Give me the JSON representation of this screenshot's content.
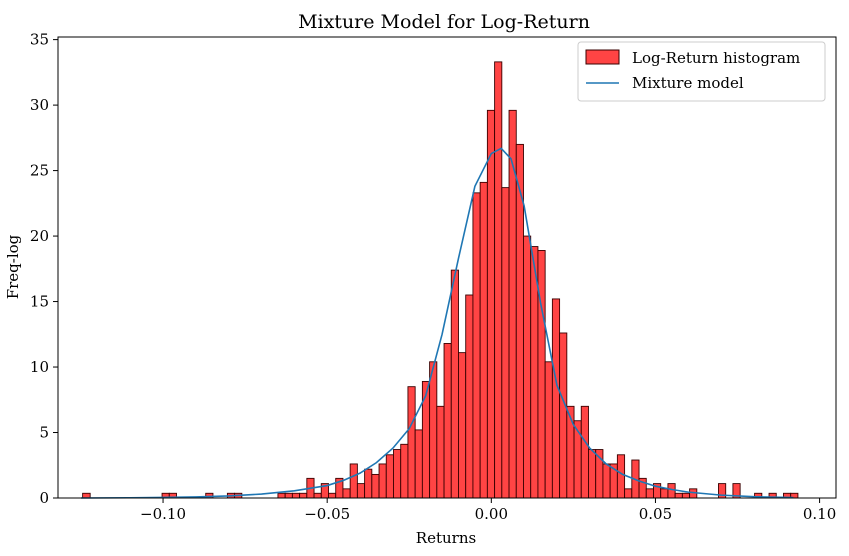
{
  "chart_data": {
    "type": "bar",
    "title": "Mixture Model for Log-Return",
    "xlabel": "Returns",
    "ylabel": "Freq-log",
    "xlim": [
      -0.132,
      0.105
    ],
    "ylim": [
      0,
      35.2
    ],
    "xticks": [
      -0.1,
      -0.05,
      0.0,
      0.05,
      0.1
    ],
    "xtick_labels": [
      "−0.10",
      "−0.05",
      "0.00",
      "0.05",
      "0.10"
    ],
    "yticks": [
      0,
      5,
      10,
      15,
      20,
      25,
      30,
      35
    ],
    "ytick_labels": [
      "0",
      "5",
      "10",
      "15",
      "20",
      "25",
      "30",
      "35"
    ],
    "grid": false,
    "legend": {
      "location": "top-right",
      "entries": [
        {
          "label": "Log-Return histogram",
          "kind": "patch"
        },
        {
          "label": "Mixture model",
          "kind": "line"
        }
      ]
    },
    "series": [
      {
        "name": "Log-Return histogram",
        "kind": "histogram",
        "color": "#ff4444",
        "edgecolor": "#3a0000",
        "bins": [
          {
            "x0": -0.1245,
            "x1": -0.1222,
            "h": 0.36
          },
          {
            "x0": -0.1003,
            "x1": -0.0981,
            "h": 0.36
          },
          {
            "x0": -0.0981,
            "x1": -0.0959,
            "h": 0.36
          },
          {
            "x0": -0.087,
            "x1": -0.0848,
            "h": 0.36
          },
          {
            "x0": -0.0804,
            "x1": -0.0782,
            "h": 0.36
          },
          {
            "x0": -0.0782,
            "x1": -0.076,
            "h": 0.36
          },
          {
            "x0": -0.065,
            "x1": -0.0628,
            "h": 0.36
          },
          {
            "x0": -0.0628,
            "x1": -0.0606,
            "h": 0.36
          },
          {
            "x0": -0.0606,
            "x1": -0.0584,
            "h": 0.36
          },
          {
            "x0": -0.0584,
            "x1": -0.0562,
            "h": 0.36
          },
          {
            "x0": -0.0562,
            "x1": -0.054,
            "h": 1.5
          },
          {
            "x0": -0.054,
            "x1": -0.0518,
            "h": 0.36
          },
          {
            "x0": -0.0518,
            "x1": -0.0496,
            "h": 1.1
          },
          {
            "x0": -0.0496,
            "x1": -0.0474,
            "h": 0.36
          },
          {
            "x0": -0.0474,
            "x1": -0.0452,
            "h": 1.5
          },
          {
            "x0": -0.0452,
            "x1": -0.043,
            "h": 0.7
          },
          {
            "x0": -0.043,
            "x1": -0.0408,
            "h": 2.6
          },
          {
            "x0": -0.0408,
            "x1": -0.0386,
            "h": 1.1
          },
          {
            "x0": -0.0386,
            "x1": -0.0364,
            "h": 2.2
          },
          {
            "x0": -0.0364,
            "x1": -0.0342,
            "h": 1.8
          },
          {
            "x0": -0.0342,
            "x1": -0.032,
            "h": 2.6
          },
          {
            "x0": -0.032,
            "x1": -0.0298,
            "h": 3.3
          },
          {
            "x0": -0.0298,
            "x1": -0.0276,
            "h": 3.7
          },
          {
            "x0": -0.0276,
            "x1": -0.0254,
            "h": 4.1
          },
          {
            "x0": -0.0254,
            "x1": -0.0232,
            "h": 8.5
          },
          {
            "x0": -0.0232,
            "x1": -0.021,
            "h": 5.2
          },
          {
            "x0": -0.021,
            "x1": -0.0188,
            "h": 8.9
          },
          {
            "x0": -0.0188,
            "x1": -0.0166,
            "h": 10.4
          },
          {
            "x0": -0.0166,
            "x1": -0.0144,
            "h": 7.0
          },
          {
            "x0": -0.0144,
            "x1": -0.0122,
            "h": 11.8
          },
          {
            "x0": -0.0122,
            "x1": -0.01,
            "h": 17.4
          },
          {
            "x0": -0.01,
            "x1": -0.0078,
            "h": 11.1
          },
          {
            "x0": -0.0078,
            "x1": -0.0056,
            "h": 15.5
          },
          {
            "x0": -0.0056,
            "x1": -0.0034,
            "h": 23.3
          },
          {
            "x0": -0.0034,
            "x1": -0.0012,
            "h": 24.1
          },
          {
            "x0": -0.0012,
            "x1": 0.001,
            "h": 29.6
          },
          {
            "x0": 0.001,
            "x1": 0.0032,
            "h": 33.3
          },
          {
            "x0": 0.0032,
            "x1": 0.0054,
            "h": 23.7
          },
          {
            "x0": 0.0054,
            "x1": 0.0076,
            "h": 29.6
          },
          {
            "x0": 0.0076,
            "x1": 0.0098,
            "h": 27.0
          },
          {
            "x0": 0.0098,
            "x1": 0.012,
            "h": 20.0
          },
          {
            "x0": 0.012,
            "x1": 0.0142,
            "h": 19.2
          },
          {
            "x0": 0.0142,
            "x1": 0.0164,
            "h": 18.9
          },
          {
            "x0": 0.0164,
            "x1": 0.0186,
            "h": 10.4
          },
          {
            "x0": 0.0186,
            "x1": 0.0208,
            "h": 15.2
          },
          {
            "x0": 0.0208,
            "x1": 0.023,
            "h": 12.6
          },
          {
            "x0": 0.023,
            "x1": 0.0252,
            "h": 7.0
          },
          {
            "x0": 0.0252,
            "x1": 0.0274,
            "h": 5.9
          },
          {
            "x0": 0.0274,
            "x1": 0.0296,
            "h": 7.0
          },
          {
            "x0": 0.0296,
            "x1": 0.0318,
            "h": 3.7
          },
          {
            "x0": 0.0318,
            "x1": 0.034,
            "h": 3.7
          },
          {
            "x0": 0.034,
            "x1": 0.0362,
            "h": 2.6
          },
          {
            "x0": 0.0362,
            "x1": 0.0384,
            "h": 2.6
          },
          {
            "x0": 0.0384,
            "x1": 0.0406,
            "h": 3.3
          },
          {
            "x0": 0.0406,
            "x1": 0.0428,
            "h": 0.7
          },
          {
            "x0": 0.0428,
            "x1": 0.045,
            "h": 2.9
          },
          {
            "x0": 0.045,
            "x1": 0.0472,
            "h": 1.5
          },
          {
            "x0": 0.0472,
            "x1": 0.0494,
            "h": 0.7
          },
          {
            "x0": 0.0494,
            "x1": 0.0516,
            "h": 1.1
          },
          {
            "x0": 0.0516,
            "x1": 0.0538,
            "h": 0.7
          },
          {
            "x0": 0.0538,
            "x1": 0.056,
            "h": 1.1
          },
          {
            "x0": 0.056,
            "x1": 0.0582,
            "h": 0.36
          },
          {
            "x0": 0.0582,
            "x1": 0.0604,
            "h": 0.36
          },
          {
            "x0": 0.0604,
            "x1": 0.0626,
            "h": 0.7
          },
          {
            "x0": 0.0692,
            "x1": 0.0714,
            "h": 1.1
          },
          {
            "x0": 0.0736,
            "x1": 0.0758,
            "h": 1.1
          },
          {
            "x0": 0.0802,
            "x1": 0.0824,
            "h": 0.36
          },
          {
            "x0": 0.0846,
            "x1": 0.0868,
            "h": 0.36
          },
          {
            "x0": 0.089,
            "x1": 0.0912,
            "h": 0.36
          },
          {
            "x0": 0.0912,
            "x1": 0.0934,
            "h": 0.36
          }
        ]
      },
      {
        "name": "Mixture model",
        "kind": "line",
        "color": "#1f77b4",
        "x": [
          -0.125,
          -0.11,
          -0.1,
          -0.09,
          -0.08,
          -0.07,
          -0.06,
          -0.05,
          -0.045,
          -0.04,
          -0.035,
          -0.03,
          -0.025,
          -0.02,
          -0.015,
          -0.01,
          -0.005,
          0.0,
          0.003,
          0.006,
          0.01,
          0.015,
          0.02,
          0.025,
          0.03,
          0.035,
          0.04,
          0.045,
          0.05,
          0.055,
          0.06,
          0.07,
          0.08,
          0.09,
          0.092
        ],
        "y": [
          0.0,
          0.02,
          0.04,
          0.08,
          0.16,
          0.3,
          0.55,
          0.95,
          1.35,
          1.9,
          2.7,
          3.8,
          5.3,
          7.8,
          12.5,
          18.3,
          23.8,
          26.3,
          26.7,
          25.9,
          22.3,
          14.9,
          8.6,
          5.6,
          3.8,
          2.6,
          1.8,
          1.3,
          0.9,
          0.65,
          0.45,
          0.22,
          0.1,
          0.04,
          0.03
        ]
      }
    ]
  }
}
